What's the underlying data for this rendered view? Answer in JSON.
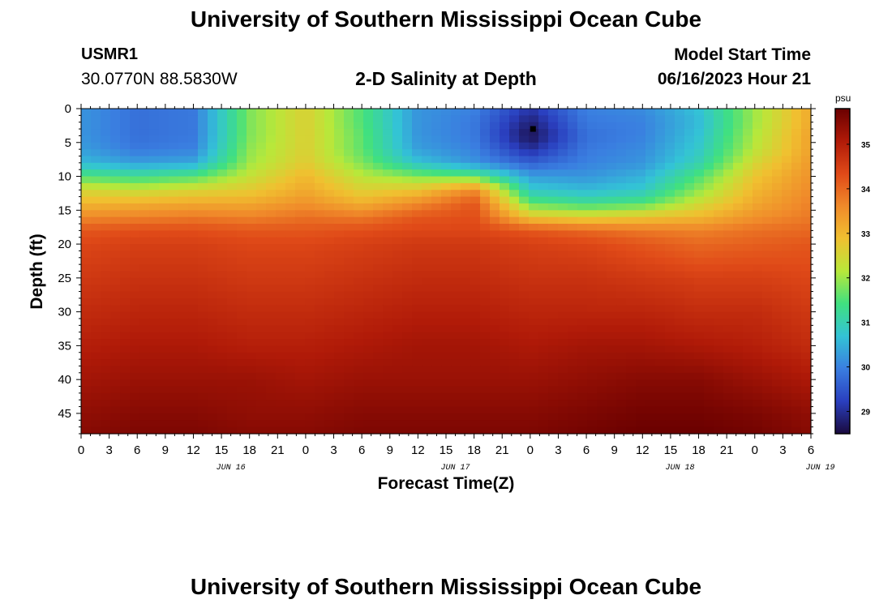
{
  "header": {
    "title": "University of Southern Mississippi Ocean Cube",
    "station_id": "USMR1",
    "station_coords": "30.0770N  88.5830W",
    "subtitle": "2-D Salinity at Depth",
    "model_label": "Model Start Time",
    "model_time": "06/16/2023 Hour 21"
  },
  "footer": {
    "title": "University of Southern Mississippi Ocean Cube"
  },
  "chart_data": {
    "type": "heatmap",
    "title": "2-D Salinity at Depth",
    "xlabel": "Forecast Time(Z)",
    "ylabel": "Depth (ft)",
    "colorbar_label": "psu",
    "x_tick_labels": [
      "0",
      "3",
      "6",
      "9",
      "12",
      "15",
      "18",
      "21",
      "0",
      "3",
      "6",
      "9",
      "12",
      "15",
      "18",
      "21",
      "0",
      "3",
      "6",
      "9",
      "12",
      "15",
      "18",
      "21",
      "0",
      "3",
      "6"
    ],
    "date_labels": [
      "JUN 16",
      "JUN 17",
      "JUN 18",
      "JUN 19"
    ],
    "date_positions_hours": [
      16,
      40,
      64,
      79
    ],
    "x_hours_range": [
      0,
      78
    ],
    "y_ticks": [
      0,
      5,
      10,
      15,
      20,
      25,
      30,
      35,
      40,
      45
    ],
    "ylim": [
      0,
      48
    ],
    "y_inverted": true,
    "colorbar_ticks": [
      29,
      30,
      31,
      32,
      33,
      34,
      35
    ],
    "colorbar_range": [
      28.5,
      35.8
    ],
    "colormap": [
      "#1a0a3e",
      "#2a3fbf",
      "#3a7ee0",
      "#33c3d6",
      "#40e080",
      "#b8e83a",
      "#f0c030",
      "#f08a2a",
      "#e04a18",
      "#b01a08",
      "#6a0000"
    ],
    "marker": {
      "hour": 48.3,
      "depth": 3
    },
    "depth_grid": [
      0,
      2,
      4,
      6,
      8,
      10,
      12,
      14,
      16,
      18,
      20,
      25,
      30,
      35,
      40,
      45,
      48
    ],
    "hour_grid": [
      0,
      6,
      12,
      18,
      24,
      30,
      36,
      42,
      48,
      54,
      60,
      66,
      72,
      78
    ],
    "salinity": [
      [
        30.2,
        29.8,
        29.9,
        31.8,
        32.6,
        31.5,
        30.2,
        30.0,
        29.1,
        30.0,
        30.1,
        30.7,
        32.0,
        33.2
      ],
      [
        30.2,
        29.8,
        29.9,
        31.8,
        32.6,
        31.5,
        30.2,
        29.9,
        28.8,
        29.9,
        30.0,
        30.6,
        32.0,
        33.2
      ],
      [
        30.2,
        29.8,
        29.9,
        31.8,
        32.6,
        31.6,
        30.2,
        29.9,
        28.6,
        29.8,
        30.0,
        30.7,
        32.1,
        33.3
      ],
      [
        30.3,
        29.9,
        30.0,
        31.9,
        32.6,
        31.6,
        30.3,
        30.0,
        29.0,
        29.9,
        30.1,
        30.8,
        32.2,
        33.3
      ],
      [
        30.6,
        30.3,
        30.4,
        32.0,
        32.7,
        31.8,
        30.7,
        30.2,
        29.6,
        30.0,
        30.2,
        31.0,
        32.5,
        33.4
      ],
      [
        31.5,
        31.3,
        31.5,
        32.3,
        33.0,
        32.2,
        31.8,
        31.6,
        30.3,
        30.2,
        30.5,
        31.5,
        32.8,
        33.5
      ],
      [
        32.5,
        32.3,
        32.5,
        32.7,
        33.2,
        32.6,
        32.8,
        33.6,
        30.8,
        30.6,
        30.8,
        31.9,
        33.0,
        33.6
      ],
      [
        33.0,
        33.1,
        33.2,
        33.2,
        33.5,
        33.1,
        33.6,
        34.2,
        31.6,
        31.3,
        31.5,
        32.4,
        33.2,
        33.7
      ],
      [
        33.6,
        33.7,
        33.8,
        33.7,
        33.9,
        33.8,
        34.2,
        34.3,
        32.8,
        32.6,
        32.8,
        33.0,
        33.5,
        33.8
      ],
      [
        34.2,
        34.3,
        34.3,
        34.2,
        34.2,
        34.3,
        34.4,
        34.4,
        34.2,
        34.0,
        33.8,
        33.7,
        33.9,
        34.0
      ],
      [
        34.4,
        34.5,
        34.5,
        34.4,
        34.4,
        34.5,
        34.6,
        34.6,
        34.5,
        34.4,
        34.2,
        34.0,
        34.1,
        34.2
      ],
      [
        34.6,
        34.7,
        34.7,
        34.6,
        34.6,
        34.7,
        34.8,
        34.8,
        34.7,
        34.7,
        34.6,
        34.5,
        34.5,
        34.4
      ],
      [
        34.8,
        34.9,
        34.9,
        34.8,
        34.8,
        34.9,
        35.0,
        35.0,
        34.9,
        34.9,
        34.9,
        34.8,
        34.8,
        34.6
      ],
      [
        35.0,
        35.1,
        35.1,
        35.0,
        35.0,
        35.1,
        35.2,
        35.2,
        35.1,
        35.2,
        35.2,
        35.1,
        35.0,
        34.8
      ],
      [
        35.2,
        35.3,
        35.3,
        35.3,
        35.2,
        35.3,
        35.3,
        35.3,
        35.3,
        35.4,
        35.5,
        35.5,
        35.3,
        35.1
      ],
      [
        35.4,
        35.5,
        35.5,
        35.4,
        35.4,
        35.5,
        35.5,
        35.5,
        35.5,
        35.6,
        35.7,
        35.7,
        35.6,
        35.4
      ],
      [
        35.5,
        35.6,
        35.6,
        35.5,
        35.5,
        35.6,
        35.6,
        35.6,
        35.6,
        35.7,
        35.8,
        35.8,
        35.7,
        35.5
      ]
    ]
  }
}
